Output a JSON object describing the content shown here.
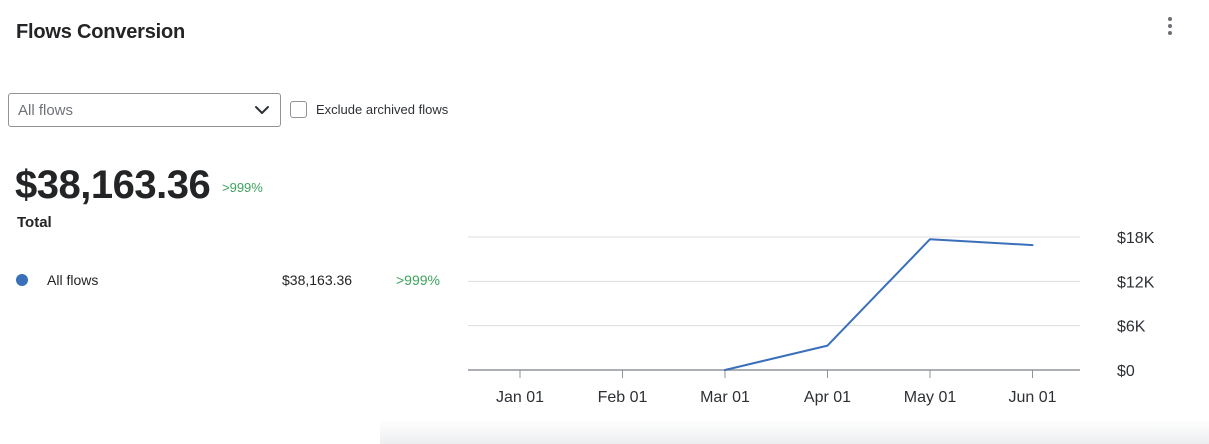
{
  "header": {
    "title": "Flows Conversion",
    "menu_icon": "more-vertical-icon"
  },
  "filters": {
    "flow_select": {
      "selected": "All flows",
      "icon": "chevron-down-icon"
    },
    "exclude_archived": {
      "label": "Exclude archived flows",
      "checked": false
    }
  },
  "summary": {
    "total_value": "$38,163.36",
    "total_change": ">999%",
    "total_label": "Total"
  },
  "legend": {
    "items": [
      {
        "name": "All flows",
        "value": "$38,163.36",
        "change": ">999%",
        "color": "#3a6fba"
      }
    ]
  },
  "colors": {
    "accent": "#3a6fba",
    "positive": "#3da35d"
  },
  "chart_data": {
    "type": "line",
    "x": [
      "2024-01-01",
      "2024-02-01",
      "2024-03-01",
      "2024-04-01",
      "2024-05-01",
      "2024-06-01"
    ],
    "x_tick_labels": [
      "Jan 01",
      "Feb 01",
      "Mar 01",
      "Apr 01",
      "May 01",
      "Jun 01"
    ],
    "y_tick_labels": [
      "$0",
      "$6K",
      "$12K",
      "$18K"
    ],
    "y_ticks": [
      0,
      6000,
      12000,
      18000
    ],
    "ylim": [
      0,
      18000
    ],
    "y_axis_position": "right",
    "grid": true,
    "series": [
      {
        "name": "All flows",
        "x": [
          "2024-03-01",
          "2024-04-01",
          "2024-05-01",
          "2024-06-01"
        ],
        "values": [
          0,
          3300,
          17700,
          16900
        ],
        "color": "#3a6fba"
      }
    ]
  }
}
